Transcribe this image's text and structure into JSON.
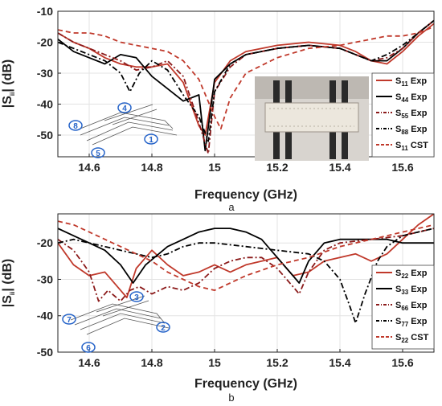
{
  "chart_data": [
    {
      "type": "line",
      "panel_label": "a",
      "xlabel": "Frequency (GHz)",
      "ylabel_main": "|S",
      "ylabel_sub": "ii",
      "ylabel_end": "| (dB)",
      "xlim": [
        14.5,
        15.7
      ],
      "ylim": [
        -57,
        -10
      ],
      "xticks": [
        14.6,
        14.8,
        15,
        15.2,
        15.4,
        15.6
      ],
      "xtick_labels": [
        "14.6",
        "14.8",
        "15",
        "15.2",
        "15.4",
        "15.6"
      ],
      "yticks": [
        -10,
        -20,
        -30,
        -40,
        -50
      ],
      "ytick_labels": [
        "-10",
        "-20",
        "-30",
        "-40",
        "-50"
      ],
      "legend_position": "bottom-right",
      "port_labels": [
        "8",
        "4",
        "5",
        "1"
      ],
      "colors": {
        "red": "#c0392b",
        "black": "#000000",
        "darkred": "#8b1a1a",
        "port": "#2563c9"
      },
      "series": [
        {
          "label_main": "S",
          "label_sub": "11",
          "label_end": " Exp",
          "color": "#c0392b",
          "dash": "solid",
          "x": [
            14.5,
            14.55,
            14.6,
            14.65,
            14.7,
            14.75,
            14.8,
            14.85,
            14.9,
            14.95,
            14.97,
            15.0,
            15.05,
            15.1,
            15.2,
            15.3,
            15.4,
            15.45,
            15.5,
            15.55,
            15.6,
            15.65,
            15.7
          ],
          "y": [
            -17,
            -20,
            -22,
            -25,
            -27,
            -28,
            -28,
            -27,
            -33,
            -47,
            -50,
            -33,
            -26,
            -23,
            -21,
            -20,
            -21,
            -23,
            -26,
            -27,
            -23,
            -18,
            -14
          ]
        },
        {
          "label_main": "S",
          "label_sub": "44",
          "label_end": " Exp",
          "color": "#000000",
          "dash": "solid",
          "x": [
            14.5,
            14.55,
            14.6,
            14.65,
            14.7,
            14.75,
            14.8,
            14.85,
            14.9,
            14.95,
            14.97,
            15.0,
            15.05,
            15.1,
            15.2,
            15.3,
            15.4,
            15.45,
            15.5,
            15.55,
            15.6,
            15.65,
            15.7
          ],
          "y": [
            -19,
            -23,
            -25,
            -27,
            -24,
            -25,
            -31,
            -35,
            -39,
            -37,
            -55,
            -32,
            -27,
            -24,
            -22,
            -21,
            -22,
            -24,
            -26,
            -26,
            -22,
            -17,
            -13
          ]
        },
        {
          "label_main": "S",
          "label_sub": "55",
          "label_end": " Exp",
          "color": "#8b1a1a",
          "dash": "dashdot",
          "x": [
            14.5,
            14.55,
            14.6,
            14.65,
            14.7,
            14.75,
            14.8,
            14.85,
            14.9,
            14.95,
            14.98,
            15.0,
            15.05,
            15.1,
            15.2,
            15.3,
            15.4,
            15.45,
            15.5,
            15.55,
            15.6,
            15.65,
            15.7
          ],
          "y": [
            -17,
            -20,
            -22,
            -24,
            -26,
            -29,
            -28,
            -26,
            -31,
            -46,
            -56,
            -36,
            -28,
            -24,
            -22,
            -21,
            -22,
            -24,
            -26,
            -25,
            -22,
            -17,
            -13
          ]
        },
        {
          "label_main": "S",
          "label_sub": "88",
          "label_end": " Exp",
          "color": "#000000",
          "dash": "dashdot",
          "x": [
            14.5,
            14.55,
            14.6,
            14.65,
            14.7,
            14.73,
            14.76,
            14.8,
            14.85,
            14.9,
            14.95,
            14.98,
            15.0,
            15.05,
            15.1,
            15.2,
            15.3,
            15.4,
            15.45,
            15.5,
            15.55,
            15.6,
            15.65,
            15.7
          ],
          "y": [
            -20,
            -22,
            -24,
            -26,
            -30,
            -36,
            -30,
            -26,
            -29,
            -37,
            -44,
            -52,
            -36,
            -27,
            -24,
            -22,
            -21,
            -22,
            -24,
            -26,
            -24,
            -21,
            -17,
            -13
          ]
        },
        {
          "label_main": "S",
          "label_sub": "11",
          "label_end": " CST",
          "color": "#c0392b",
          "dash": "dashed",
          "x": [
            14.5,
            14.55,
            14.6,
            14.65,
            14.7,
            14.75,
            14.8,
            14.85,
            14.9,
            14.95,
            15.0,
            15.02,
            15.05,
            15.1,
            15.2,
            15.3,
            15.4,
            15.45,
            15.5,
            15.55,
            15.6,
            15.65,
            15.7
          ],
          "y": [
            -16,
            -17,
            -17,
            -18,
            -20,
            -21,
            -22,
            -23,
            -26,
            -32,
            -44,
            -48,
            -38,
            -30,
            -25,
            -22,
            -21,
            -20,
            -19,
            -18,
            -18,
            -17,
            -15
          ]
        }
      ]
    },
    {
      "type": "line",
      "panel_label": "b",
      "xlabel": "Frequency (GHz)",
      "ylabel_main": "|S",
      "ylabel_sub": "ii",
      "ylabel_end": "| (dB)",
      "xlim": [
        14.5,
        15.7
      ],
      "ylim": [
        -50,
        -12
      ],
      "xticks": [
        14.6,
        14.8,
        15,
        15.2,
        15.4,
        15.6
      ],
      "xtick_labels": [
        "14.6",
        "14.8",
        "15",
        "15.2",
        "15.4",
        "15.6"
      ],
      "yticks": [
        -20,
        -30,
        -40,
        -50
      ],
      "ytick_labels": [
        "-20",
        "-30",
        "-40",
        "-50"
      ],
      "legend_position": "bottom-right",
      "port_labels": [
        "3",
        "7",
        "2",
        "6"
      ],
      "series": [
        {
          "label_main": "S",
          "label_sub": "22",
          "label_end": " Exp",
          "color": "#c0392b",
          "dash": "solid",
          "x": [
            14.5,
            14.55,
            14.6,
            14.65,
            14.7,
            14.72,
            14.75,
            14.8,
            14.85,
            14.9,
            14.95,
            15.0,
            15.05,
            15.1,
            15.2,
            15.25,
            15.3,
            15.35,
            15.4,
            15.45,
            15.5,
            15.55,
            15.6,
            15.65,
            15.7
          ],
          "y": [
            -20,
            -26,
            -29,
            -28,
            -33,
            -35,
            -27,
            -22,
            -26,
            -29,
            -28,
            -26,
            -28,
            -26,
            -24,
            -29,
            -28,
            -25,
            -24,
            -23,
            -25,
            -23,
            -19,
            -15,
            -12
          ]
        },
        {
          "label_main": "S",
          "label_sub": "33",
          "label_end": " Exp",
          "color": "#000000",
          "dash": "solid",
          "x": [
            14.5,
            14.55,
            14.6,
            14.65,
            14.7,
            14.74,
            14.78,
            14.85,
            14.9,
            14.95,
            15.0,
            15.05,
            15.1,
            15.15,
            15.2,
            15.25,
            15.27,
            15.3,
            15.35,
            15.4,
            15.45,
            15.5,
            15.55,
            15.6,
            15.65,
            15.7
          ],
          "y": [
            -16,
            -18,
            -20,
            -22,
            -26,
            -31,
            -26,
            -21,
            -19,
            -17,
            -16,
            -16,
            -17,
            -19,
            -24,
            -29,
            -31,
            -25,
            -20,
            -19,
            -19,
            -19,
            -19,
            -20,
            -20,
            -20
          ]
        },
        {
          "label_main": "S",
          "label_sub": "66",
          "label_end": " Exp",
          "color": "#8b1a1a",
          "dash": "dashdot",
          "x": [
            14.5,
            14.55,
            14.6,
            14.63,
            14.66,
            14.7,
            14.73,
            14.76,
            14.8,
            14.85,
            14.9,
            14.95,
            15.0,
            15.05,
            15.1,
            15.15,
            15.2,
            15.25,
            15.27,
            15.3,
            15.35,
            15.4,
            15.5,
            15.6,
            15.7
          ],
          "y": [
            -19,
            -22,
            -28,
            -36,
            -33,
            -36,
            -33,
            -32,
            -34,
            -32,
            -33,
            -31,
            -27,
            -25,
            -24,
            -24,
            -27,
            -32,
            -34,
            -28,
            -22,
            -20,
            -19,
            -18,
            -16
          ]
        },
        {
          "label_main": "S",
          "label_sub": "77",
          "label_end": " Exp",
          "color": "#000000",
          "dash": "dashdot",
          "x": [
            14.5,
            14.55,
            14.6,
            14.65,
            14.7,
            14.75,
            14.8,
            14.85,
            14.9,
            14.95,
            15.0,
            15.1,
            15.2,
            15.3,
            15.35,
            15.4,
            15.43,
            15.45,
            15.48,
            15.52,
            15.55,
            15.6,
            15.65,
            15.7
          ],
          "y": [
            -20,
            -19,
            -20,
            -21,
            -22,
            -23,
            -24,
            -23,
            -21,
            -20,
            -20,
            -21,
            -22,
            -23,
            -25,
            -30,
            -37,
            -42,
            -34,
            -25,
            -21,
            -18,
            -17,
            -16
          ]
        },
        {
          "label_main": "S",
          "label_sub": "22",
          "label_end": " CST",
          "color": "#c0392b",
          "dash": "dashed",
          "x": [
            14.5,
            14.55,
            14.6,
            14.65,
            14.7,
            14.75,
            14.8,
            14.85,
            14.9,
            14.95,
            15.0,
            15.05,
            15.1,
            15.2,
            15.3,
            15.4,
            15.5,
            15.55,
            15.6,
            15.65,
            15.7
          ],
          "y": [
            -14,
            -15,
            -17,
            -19,
            -21,
            -23,
            -25,
            -28,
            -30,
            -32,
            -33,
            -31,
            -29,
            -26,
            -24,
            -21,
            -19,
            -18,
            -17,
            -16,
            -15
          ]
        }
      ]
    }
  ]
}
